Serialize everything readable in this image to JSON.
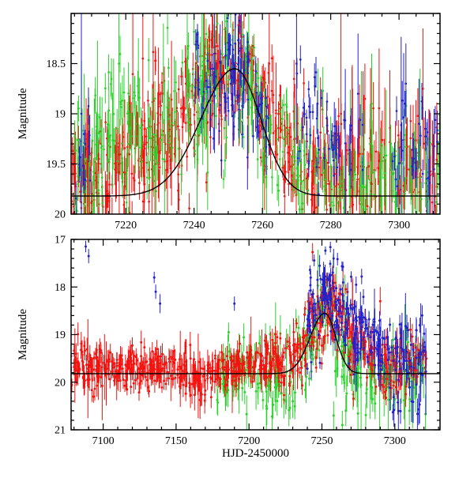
{
  "figure": {
    "background": "#ffffff",
    "frame_color": "#000000"
  },
  "labels": {
    "y_axis": "Magnitude",
    "x_axis": "HJD-2450000"
  },
  "colors": {
    "red": "#f11410",
    "green": "#2bd12b",
    "blue": "#2222cc",
    "model": "#000000"
  },
  "chart_data": [
    {
      "id": "top",
      "type": "scatter",
      "title": "",
      "xlabel": "",
      "ylabel": "Magnitude",
      "xlim": [
        7204,
        7312
      ],
      "ylim": [
        20.0,
        18.0
      ],
      "y_inverted": true,
      "grid": false,
      "legend": "none",
      "xticks": [
        7220,
        7240,
        7260,
        7280,
        7300
      ],
      "xtick_labels": [
        "7220",
        "7240",
        "7260",
        "7280",
        "7300"
      ],
      "xtick_minor_step": 5,
      "yticks": [
        18.5,
        19.0,
        19.5,
        20.0
      ],
      "ytick_labels": [
        "18.5",
        "19",
        "19.5",
        "20"
      ],
      "ytick_minor_step": 0.1,
      "model_line": {
        "base_mag": 19.82,
        "amplitude": 1.27,
        "peak_t": 7252,
        "sigma_rise": 10,
        "sigma_fall": 7.5
      },
      "series": [
        {
          "name": "red",
          "color_key": "red",
          "seed": 11,
          "big_bar_frac": 0.12,
          "segments": [
            [
              7204,
              7212,
              60,
              19.65,
              0.18,
              0.15
            ],
            [
              7212,
              7220,
              50,
              19.55,
              0.25,
              0.15
            ],
            [
              7220,
              7228,
              60,
              19.35,
              0.3,
              0.15
            ],
            [
              7228,
              7236,
              55,
              19.2,
              0.35,
              0.15
            ],
            [
              7236,
              7244,
              55,
              18.9,
              0.35,
              0.12
            ],
            [
              7244,
              7252,
              60,
              18.65,
              0.3,
              0.12
            ],
            [
              7252,
              7258,
              45,
              18.6,
              0.25,
              0.12
            ],
            [
              7258,
              7266,
              50,
              19.0,
              0.3,
              0.12
            ],
            [
              7266,
              7274,
              45,
              19.35,
              0.3,
              0.15
            ],
            [
              7274,
              7284,
              50,
              19.6,
              0.25,
              0.18
            ],
            [
              7284,
              7296,
              55,
              19.6,
              0.25,
              0.22
            ],
            [
              7296,
              7312,
              60,
              19.55,
              0.28,
              0.22
            ]
          ],
          "points": [
            [
              7225,
              18.45,
              0.5
            ],
            [
              7243,
              18.4,
              0.9
            ],
            [
              7262,
              18.5,
              0.9
            ],
            [
              7283,
              19.0,
              1.0
            ],
            [
              7290,
              18.85,
              0.35
            ],
            [
              7307,
              18.75,
              0.6
            ]
          ]
        },
        {
          "name": "green",
          "color_key": "green",
          "seed": 22,
          "big_bar_frac": 0.12,
          "segments": [
            [
              7205,
              7214,
              45,
              19.5,
              0.3,
              0.18
            ],
            [
              7214,
              7222,
              40,
              19.1,
              0.35,
              0.18
            ],
            [
              7222,
              7232,
              35,
              19.3,
              0.35,
              0.18
            ],
            [
              7232,
              7242,
              40,
              18.9,
              0.35,
              0.15
            ],
            [
              7242,
              7252,
              45,
              18.6,
              0.3,
              0.15
            ],
            [
              7252,
              7260,
              35,
              18.8,
              0.3,
              0.15
            ],
            [
              7260,
              7270,
              35,
              19.3,
              0.3,
              0.15
            ],
            [
              7270,
              7282,
              35,
              19.6,
              0.25,
              0.18
            ],
            [
              7282,
              7296,
              40,
              19.65,
              0.22,
              0.2
            ],
            [
              7296,
              7312,
              45,
              19.6,
              0.25,
              0.2
            ]
          ],
          "points": [
            [
              7218,
              18.5,
              0.7
            ],
            [
              7231,
              18.6,
              0.5
            ],
            [
              7238,
              18.35,
              0.6
            ],
            [
              7256,
              18.35,
              0.5
            ],
            [
              7292,
              18.9,
              0.5
            ]
          ]
        },
        {
          "name": "blue",
          "color_key": "blue",
          "seed": 33,
          "big_bar_frac": 0.12,
          "segments": [
            [
              7205,
              7210,
              12,
              19.4,
              0.35,
              0.15
            ],
            [
              7240,
              7248,
              30,
              18.7,
              0.35,
              0.12
            ],
            [
              7248,
              7256,
              45,
              18.6,
              0.3,
              0.12
            ],
            [
              7256,
              7262,
              20,
              18.9,
              0.3,
              0.12
            ],
            [
              7270,
              7282,
              40,
              19.0,
              0.35,
              0.12
            ],
            [
              7282,
              7290,
              15,
              19.3,
              0.3,
              0.15
            ],
            [
              7298,
              7312,
              35,
              19.3,
              0.25,
              0.15
            ]
          ],
          "points": [
            [
              7207,
              19.0,
              1.0
            ],
            [
              7246,
              18.4,
              0.8
            ],
            [
              7252,
              18.3,
              0.7
            ],
            [
              7270,
              18.5,
              0.8
            ],
            [
              7288,
              18.8,
              0.6
            ],
            [
              7302,
              18.7,
              0.4
            ]
          ]
        }
      ]
    },
    {
      "id": "bottom",
      "type": "scatter",
      "title": "",
      "xlabel": "HJD-2450000",
      "ylabel": "Magnitude",
      "xlim": [
        7078,
        7331
      ],
      "ylim": [
        21.0,
        17.0
      ],
      "y_inverted": true,
      "grid": false,
      "legend": "none",
      "xticks": [
        7100,
        7150,
        7200,
        7250,
        7300
      ],
      "xtick_labels": [
        "7100",
        "7150",
        "7200",
        "7250",
        "7300"
      ],
      "xtick_minor_step": 10,
      "yticks": [
        17,
        18,
        19,
        20,
        21
      ],
      "ytick_labels": [
        "17",
        "18",
        "19",
        "20",
        "21"
      ],
      "ytick_minor_step": 0.2,
      "model_line": {
        "base_mag": 19.82,
        "amplitude": 1.27,
        "peak_t": 7252,
        "sigma_rise": 10,
        "sigma_fall": 7.5
      },
      "series": [
        {
          "name": "green",
          "color_key": "green",
          "seed": 55,
          "big_bar_frac": 0.1,
          "segments": [
            [
              7178,
              7195,
              30,
              19.8,
              0.3,
              0.25
            ],
            [
              7195,
              7215,
              35,
              19.9,
              0.35,
              0.3
            ],
            [
              7215,
              7232,
              30,
              19.9,
              0.4,
              0.3
            ],
            [
              7232,
              7245,
              30,
              19.3,
              0.4,
              0.2
            ],
            [
              7245,
              7258,
              35,
              18.6,
              0.35,
              0.2
            ],
            [
              7258,
              7270,
              30,
              19.3,
              0.5,
              0.25
            ],
            [
              7270,
              7285,
              30,
              19.8,
              0.4,
              0.3
            ],
            [
              7285,
              7302,
              30,
              19.85,
              0.35,
              0.3
            ],
            [
              7302,
              7322,
              35,
              19.8,
              0.35,
              0.3
            ]
          ],
          "points": [
            [
              7186,
              18.95,
              0.2
            ],
            [
              7212,
              20.5,
              0.3
            ],
            [
              7230,
              20.4,
              0.35
            ],
            [
              7250,
              18.35,
              0.25
            ],
            [
              7254,
              18.3,
              0.25
            ],
            [
              7258,
              20.7,
              0.3
            ],
            [
              7264,
              20.9,
              0.3
            ],
            [
              7310,
              20.6,
              0.3
            ]
          ]
        },
        {
          "name": "red",
          "color_key": "red",
          "seed": 44,
          "big_bar_frac": 0.05,
          "segments": [
            [
              7073,
              7090,
              60,
              19.6,
              0.25,
              0.2
            ],
            [
              7090,
              7110,
              70,
              19.65,
              0.2,
              0.18
            ],
            [
              7110,
              7130,
              70,
              19.7,
              0.2,
              0.18
            ],
            [
              7130,
              7150,
              70,
              19.7,
              0.18,
              0.18
            ],
            [
              7150,
              7158,
              25,
              19.75,
              0.2,
              0.2
            ],
            [
              7158,
              7172,
              45,
              19.85,
              0.28,
              0.25
            ],
            [
              7172,
              7185,
              45,
              19.7,
              0.2,
              0.18
            ],
            [
              7185,
              7200,
              55,
              19.65,
              0.2,
              0.18
            ],
            [
              7200,
              7215,
              50,
              19.6,
              0.22,
              0.18
            ],
            [
              7215,
              7230,
              50,
              19.55,
              0.25,
              0.18
            ],
            [
              7230,
              7240,
              40,
              19.3,
              0.3,
              0.15
            ],
            [
              7240,
              7252,
              45,
              18.8,
              0.4,
              0.15
            ],
            [
              7252,
              7260,
              35,
              18.45,
              0.35,
              0.15
            ],
            [
              7260,
              7268,
              30,
              18.7,
              0.4,
              0.15
            ],
            [
              7268,
              7280,
              40,
              19.2,
              0.4,
              0.18
            ],
            [
              7280,
              7295,
              45,
              19.5,
              0.3,
              0.2
            ],
            [
              7295,
              7322,
              65,
              19.6,
              0.3,
              0.2
            ]
          ],
          "points": [
            [
              7247,
              18.2,
              0.3
            ],
            [
              7252,
              17.9,
              0.3
            ],
            [
              7258,
              18.0,
              0.25
            ],
            [
              7290,
              18.3,
              0.3
            ]
          ]
        },
        {
          "name": "blue",
          "color_key": "blue",
          "seed": 66,
          "big_bar_frac": 0.12,
          "segments": [
            [
              7240,
              7250,
              35,
              18.6,
              0.4,
              0.12
            ],
            [
              7250,
              7258,
              40,
              18.1,
              0.35,
              0.12
            ],
            [
              7258,
              7266,
              30,
              18.5,
              0.4,
              0.12
            ],
            [
              7266,
              7278,
              45,
              18.8,
              0.4,
              0.15
            ],
            [
              7278,
              7290,
              35,
              19.1,
              0.35,
              0.15
            ],
            [
              7290,
              7305,
              35,
              19.3,
              0.35,
              0.18
            ],
            [
              7305,
              7322,
              35,
              19.45,
              0.4,
              0.2
            ],
            [
              7295,
              7318,
              10,
              20.5,
              0.3,
              0.35
            ]
          ],
          "points": [
            [
              7088,
              17.15,
              0.12
            ],
            [
              7090,
              17.35,
              0.15
            ],
            [
              7135,
              17.8,
              0.12
            ],
            [
              7136,
              18.1,
              0.15
            ],
            [
              7139,
              18.35,
              0.2
            ],
            [
              7190,
              18.35,
              0.15
            ],
            [
              7247,
              17.85,
              0.2
            ],
            [
              7256,
              17.75,
              0.15
            ],
            [
              7258,
              17.4,
              0.2
            ]
          ]
        }
      ]
    }
  ]
}
